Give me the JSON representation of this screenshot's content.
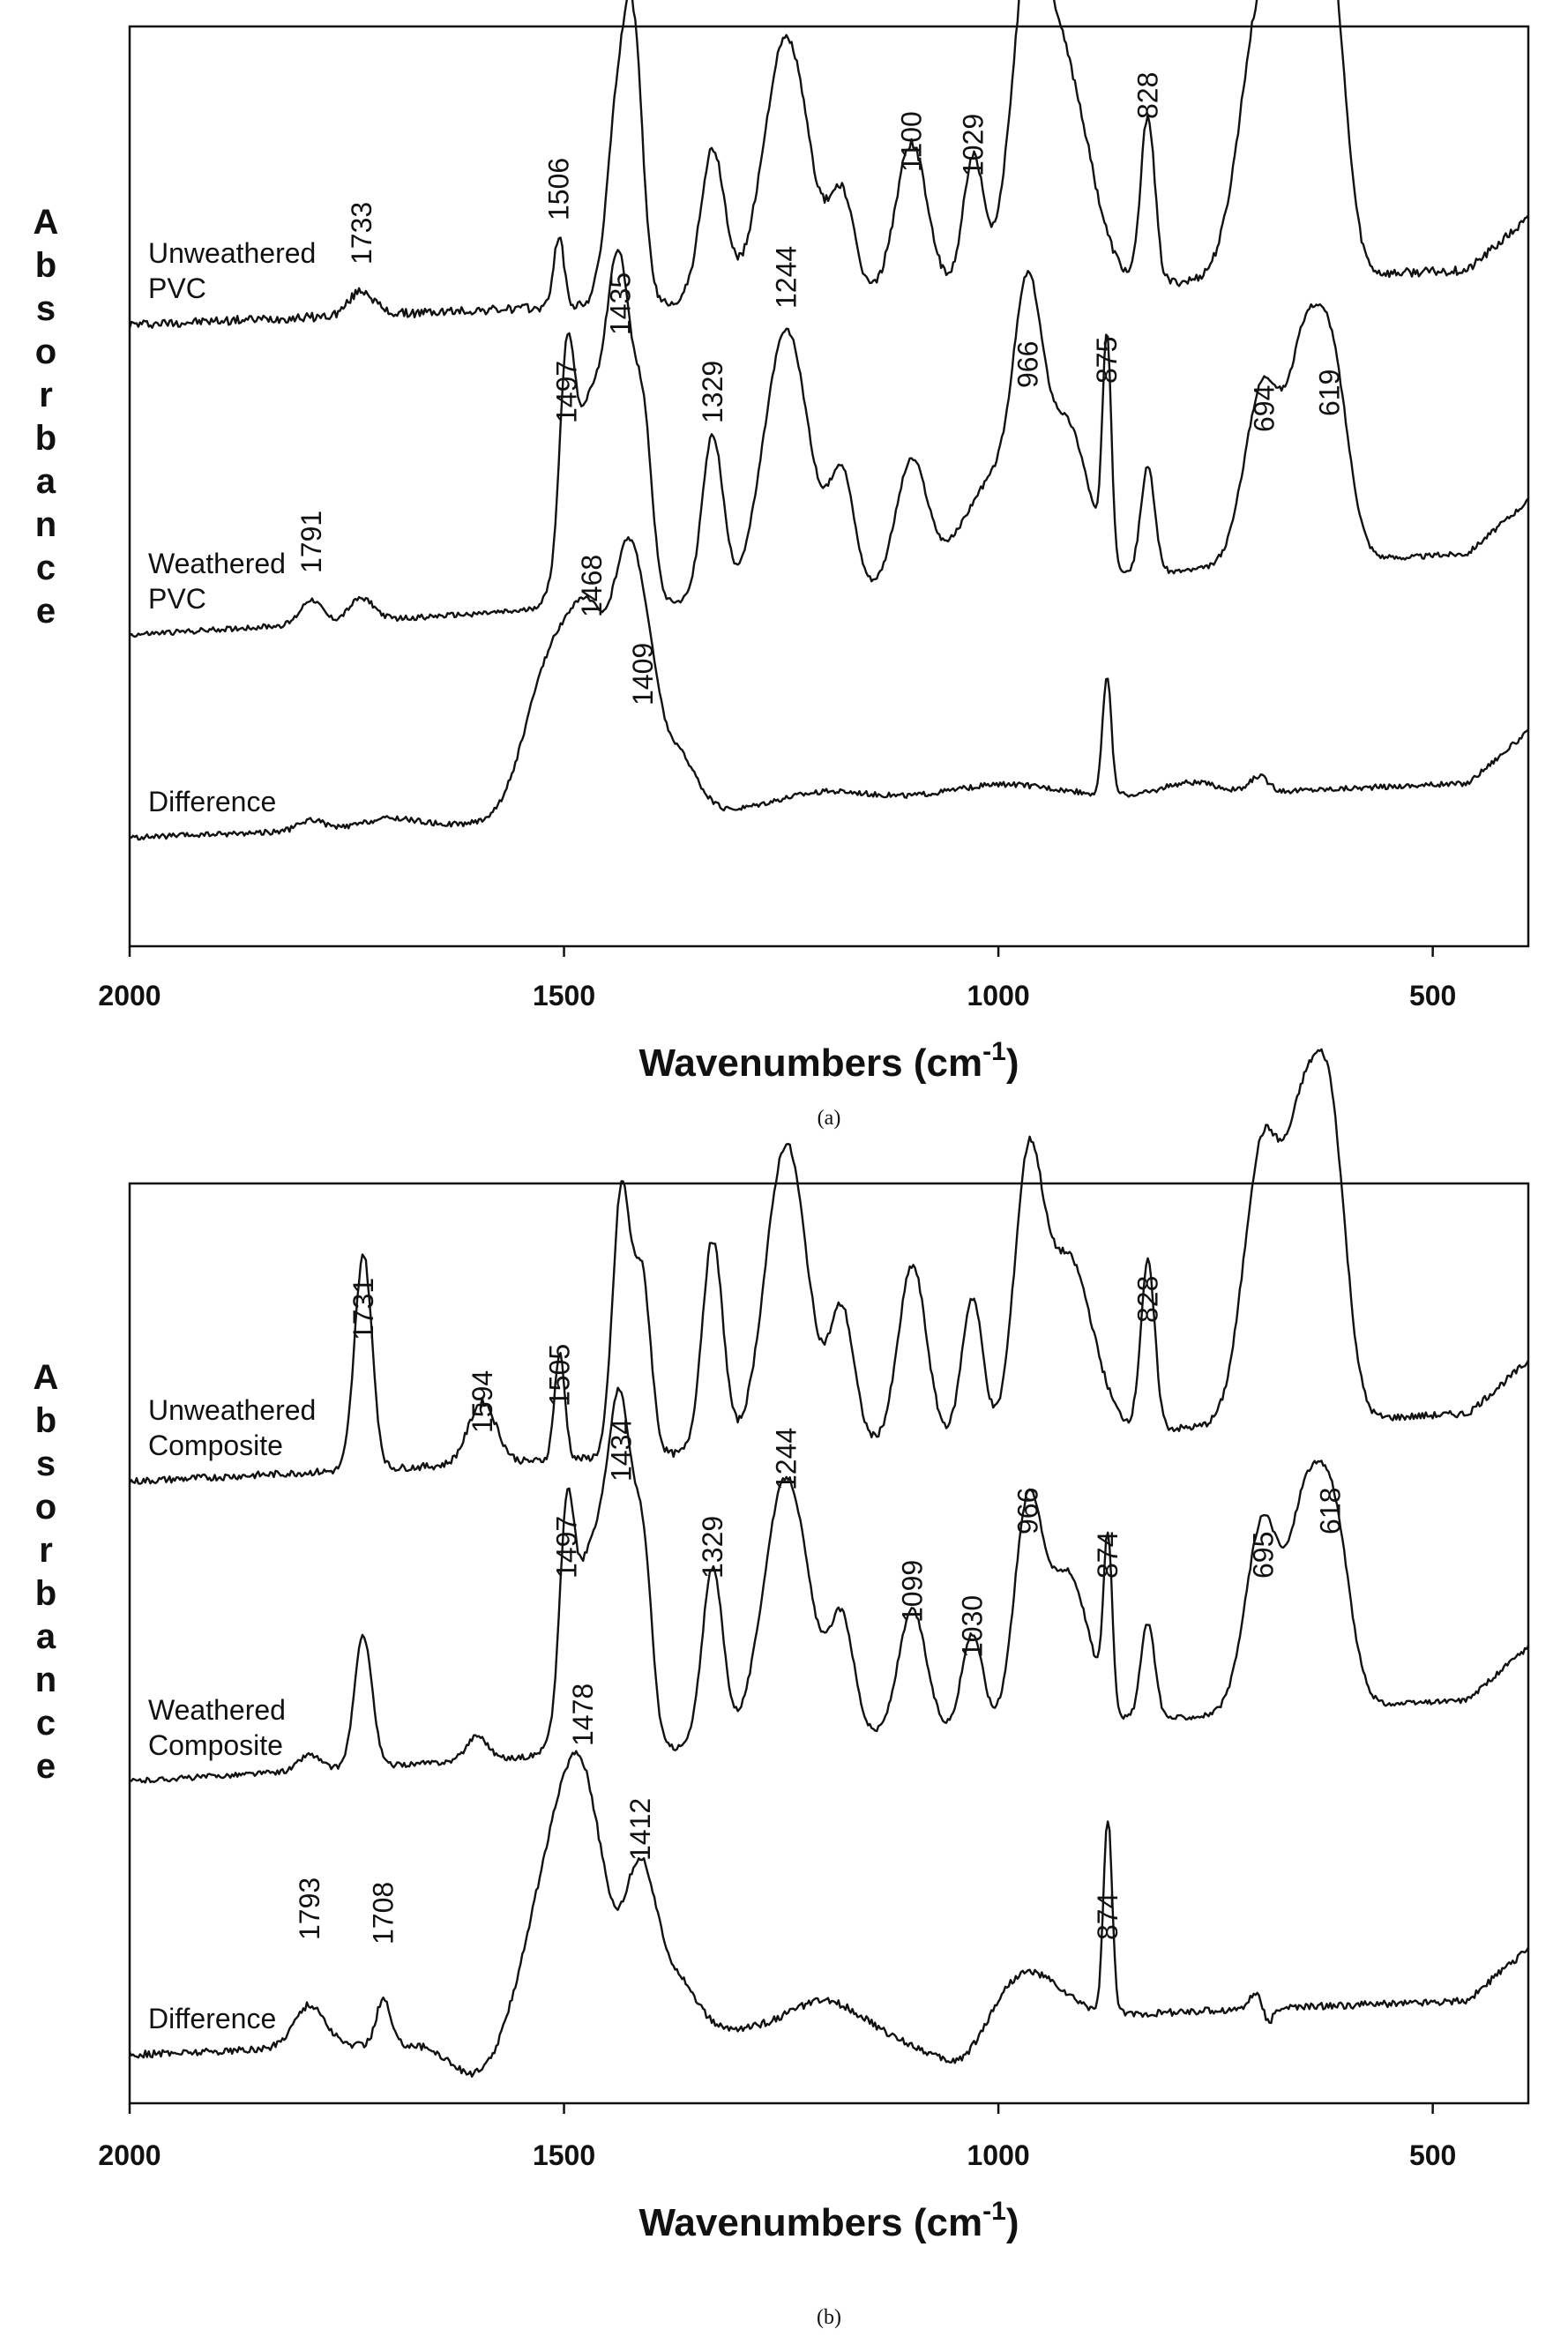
{
  "chart_data": [
    {
      "type": "line",
      "caption": "(a)",
      "xlabel": "Wavenumbers (cm-1)",
      "ylabel": "Absorbance",
      "xlim": [
        2000,
        390
      ],
      "x_reversed": true,
      "xticks": [
        2000,
        1500,
        1000,
        500
      ],
      "grid": false,
      "series": [
        {
          "name": "Unweathered PVC",
          "label_lines": [
            "Unweathered",
            "PVC"
          ],
          "baseline": 0,
          "peaks": [
            1733,
            1506,
            1100,
            1029,
            828
          ]
        },
        {
          "name": "Weathered PVC",
          "label_lines": [
            "Weathered",
            "PVC"
          ],
          "baseline": 0,
          "peaks": [
            1791,
            1497,
            1435,
            1329,
            1244,
            966,
            875,
            694,
            619
          ]
        },
        {
          "name": "Difference",
          "label_lines": [
            "Difference"
          ],
          "baseline": 0,
          "peaks": [
            1468,
            1409
          ]
        }
      ]
    },
    {
      "type": "line",
      "caption": "(b)",
      "xlabel": "Wavenumbers (cm-1)",
      "ylabel": "Absorbance",
      "xlim": [
        2000,
        390
      ],
      "x_reversed": true,
      "xticks": [
        2000,
        1500,
        1000,
        500
      ],
      "grid": false,
      "series": [
        {
          "name": "Unweathered Composite",
          "label_lines": [
            "Unweathered",
            "Composite"
          ],
          "baseline": 0,
          "peaks": [
            1731,
            1594,
            1505,
            828
          ]
        },
        {
          "name": "Weathered Composite",
          "label_lines": [
            "Weathered",
            "Composite"
          ],
          "baseline": 0,
          "peaks": [
            1497,
            1434,
            1329,
            1244,
            1099,
            1030,
            966,
            874,
            695,
            618
          ]
        },
        {
          "name": "Difference",
          "label_lines": [
            "Difference"
          ],
          "baseline": 0,
          "peaks": [
            1793,
            1708,
            1478,
            1412,
            874
          ]
        }
      ]
    }
  ]
}
